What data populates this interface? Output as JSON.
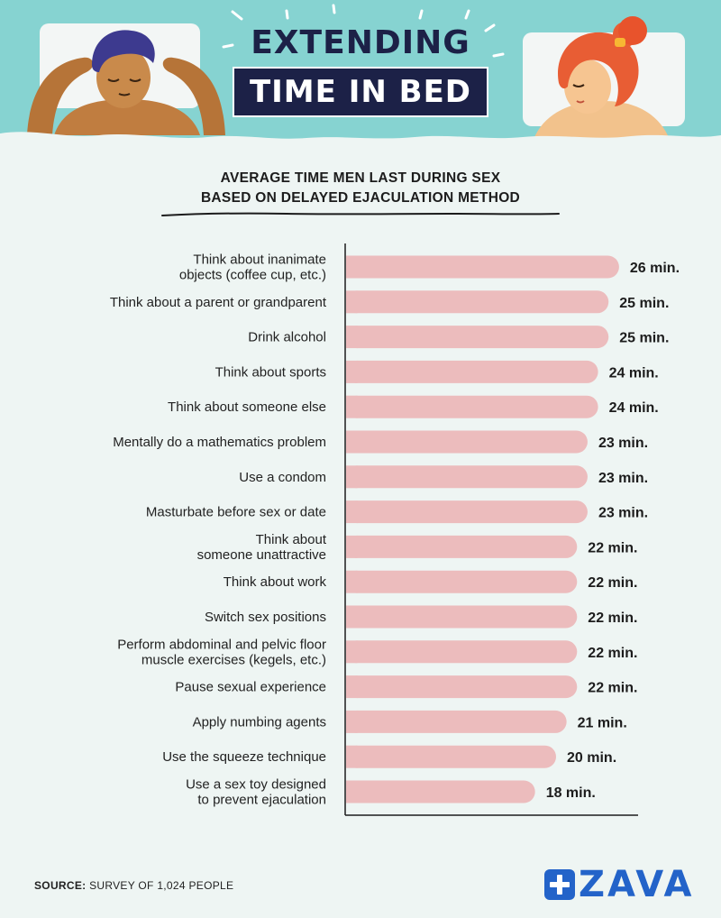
{
  "header": {
    "title_line1": "EXTENDING",
    "title_line2": "TIME IN BED"
  },
  "chart_data": {
    "type": "bar",
    "orientation": "horizontal",
    "title": "AVERAGE TIME MEN LAST DURING SEX",
    "subtitle": "BASED ON DELAYED EJACULATION METHOD",
    "unit_suffix": " min.",
    "categories": [
      [
        "Think about inanimate",
        "objects (coffee cup, etc.)"
      ],
      [
        "Think about a parent or grandparent"
      ],
      [
        "Drink alcohol"
      ],
      [
        "Think about sports"
      ],
      [
        "Think about someone else"
      ],
      [
        "Mentally do a mathematics problem"
      ],
      [
        "Use a condom"
      ],
      [
        "Masturbate before sex or date"
      ],
      [
        "Think about",
        "someone unattractive"
      ],
      [
        "Think about work"
      ],
      [
        "Switch sex positions"
      ],
      [
        "Perform abdominal and pelvic floor",
        "muscle exercises (kegels, etc.)"
      ],
      [
        "Pause sexual experience"
      ],
      [
        "Apply numbing agents"
      ],
      [
        "Use the squeeze technique"
      ],
      [
        "Use a sex toy designed",
        "to prevent ejaculation"
      ]
    ],
    "values": [
      26,
      25,
      25,
      24,
      24,
      23,
      23,
      23,
      22,
      22,
      22,
      22,
      22,
      21,
      20,
      18
    ],
    "bar_color": "#ecbcbd",
    "grid": false,
    "legend": "none"
  },
  "footer": {
    "source_label": "SOURCE:",
    "source_text": " SURVEY OF 1,024 PEOPLE",
    "logo_text": "ZAVA"
  },
  "colors": {
    "sky": "#86d3d1",
    "background": "#eef5f3",
    "title_dark": "#1c2147",
    "brand_blue": "#2363c9"
  }
}
